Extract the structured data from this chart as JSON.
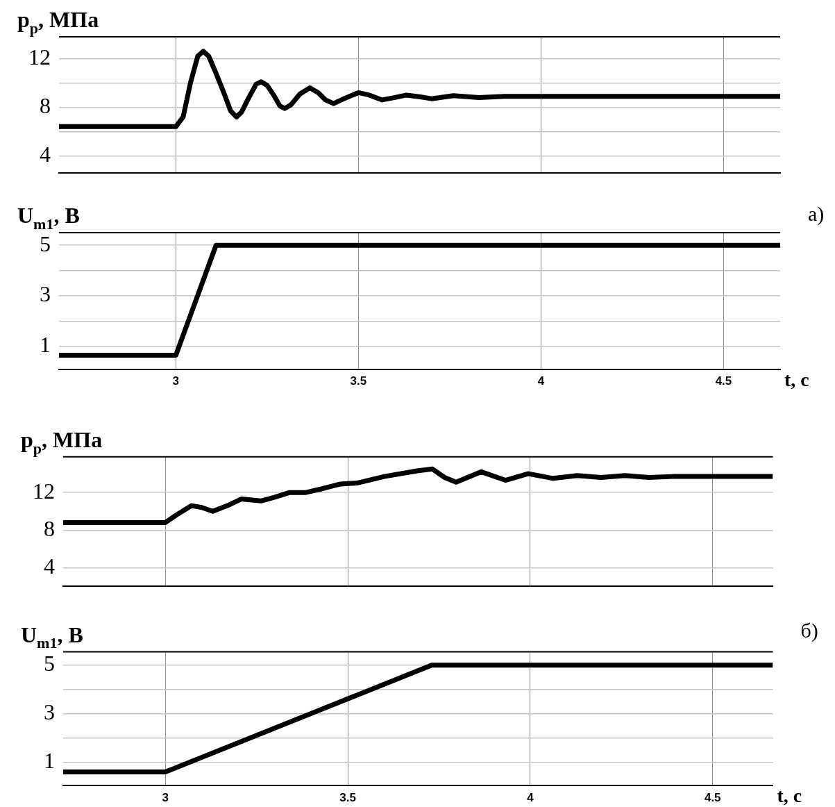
{
  "chart_data": [
    {
      "type": "line",
      "ylabel": "p$_{p}$, МПа",
      "xlim": [
        2.68,
        4.655
      ],
      "xticks": [
        3,
        3.5,
        4,
        4.5
      ],
      "ylim": [
        2.6,
        13.8
      ],
      "yticks": [
        4,
        {
          "value": 6,
          "label": null
        },
        8,
        {
          "value": 10,
          "label": null
        },
        12
      ],
      "grid": true,
      "tick_labels": "y",
      "x": [
        2.68,
        3.0,
        3.02,
        3.04,
        3.06,
        3.075,
        3.09,
        3.11,
        3.13,
        3.15,
        3.166,
        3.18,
        3.2,
        3.22,
        3.234,
        3.25,
        3.27,
        3.285,
        3.298,
        3.315,
        3.34,
        3.367,
        3.39,
        3.41,
        3.432,
        3.46,
        3.5,
        3.53,
        3.565,
        3.6,
        3.631,
        3.67,
        3.7,
        3.76,
        3.83,
        3.9,
        4.0,
        4.655
      ],
      "series": [
        {
          "color": "#000000",
          "values": [
            6.4,
            6.4,
            7.2,
            10,
            12.2,
            12.6,
            12.2,
            10.8,
            9.3,
            7.7,
            7.2,
            7.6,
            8.8,
            9.9,
            10.1,
            9.8,
            8.9,
            8.1,
            7.9,
            8.2,
            9.1,
            9.6,
            9.2,
            8.6,
            8.3,
            8.7,
            9.2,
            9.0,
            8.6,
            8.8,
            9.0,
            8.85,
            8.7,
            8.95,
            8.8,
            8.9,
            8.9,
            8.9
          ]
        }
      ]
    },
    {
      "type": "line",
      "ylabel": "U$_{m1}$, В",
      "xlabel": "t, с",
      "annotations": [
        "а)"
      ],
      "xlim": [
        2.68,
        4.655
      ],
      "xticks": [
        3,
        3.5,
        4,
        4.5
      ],
      "ylim": [
        0.1,
        5.5
      ],
      "yticks": [
        1,
        {
          "value": 2,
          "label": null
        },
        3,
        {
          "value": 4,
          "label": null
        },
        5
      ],
      "grid": true,
      "x": [
        2.68,
        3.0,
        3.11,
        4.655
      ],
      "series": [
        {
          "color": "#000000",
          "values": [
            0.65,
            0.65,
            5,
            5
          ]
        }
      ]
    },
    {
      "type": "line",
      "ylabel": "p$_{p}$, МПа",
      "xlim": [
        2.72,
        4.665
      ],
      "xticks": [
        3,
        3.5,
        4,
        4.5
      ],
      "ylim": [
        2.05,
        15.8
      ],
      "yticks": [
        4,
        8,
        12
      ],
      "grid": true,
      "tick_labels": "y",
      "x": [
        2.72,
        3.0,
        3.03,
        3.072,
        3.1,
        3.13,
        3.17,
        3.208,
        3.262,
        3.3,
        3.341,
        3.385,
        3.43,
        3.48,
        3.525,
        3.6,
        3.69,
        3.732,
        3.765,
        3.797,
        3.866,
        3.932,
        3.994,
        4.063,
        4.129,
        4.194,
        4.26,
        4.325,
        4.39,
        4.457,
        4.665
      ],
      "series": [
        {
          "color": "#000000",
          "values": [
            8.8,
            8.8,
            9.6,
            10.6,
            10.4,
            10.0,
            10.6,
            11.3,
            11.1,
            11.5,
            12.0,
            12.0,
            12.4,
            12.9,
            13.0,
            13.7,
            14.3,
            14.5,
            13.6,
            13.1,
            14.2,
            13.3,
            14.0,
            13.5,
            13.8,
            13.6,
            13.8,
            13.6,
            13.7,
            13.7,
            13.7
          ]
        }
      ]
    },
    {
      "type": "line",
      "ylabel": "U$_{m1}$, В",
      "xlabel": "t, с",
      "annotations": [
        "б)"
      ],
      "xlim": [
        2.72,
        4.665
      ],
      "xticks": [
        3,
        3.5,
        4,
        4.5
      ],
      "ylim": [
        0.05,
        5.55
      ],
      "yticks": [
        1,
        {
          "value": 2,
          "label": null
        },
        3,
        {
          "value": 4,
          "label": null
        },
        5
      ],
      "grid": true,
      "x": [
        2.72,
        3.0,
        3.73,
        4.665
      ],
      "series": [
        {
          "color": "#000000",
          "values": [
            0.6,
            0.6,
            5,
            5
          ]
        }
      ]
    }
  ]
}
